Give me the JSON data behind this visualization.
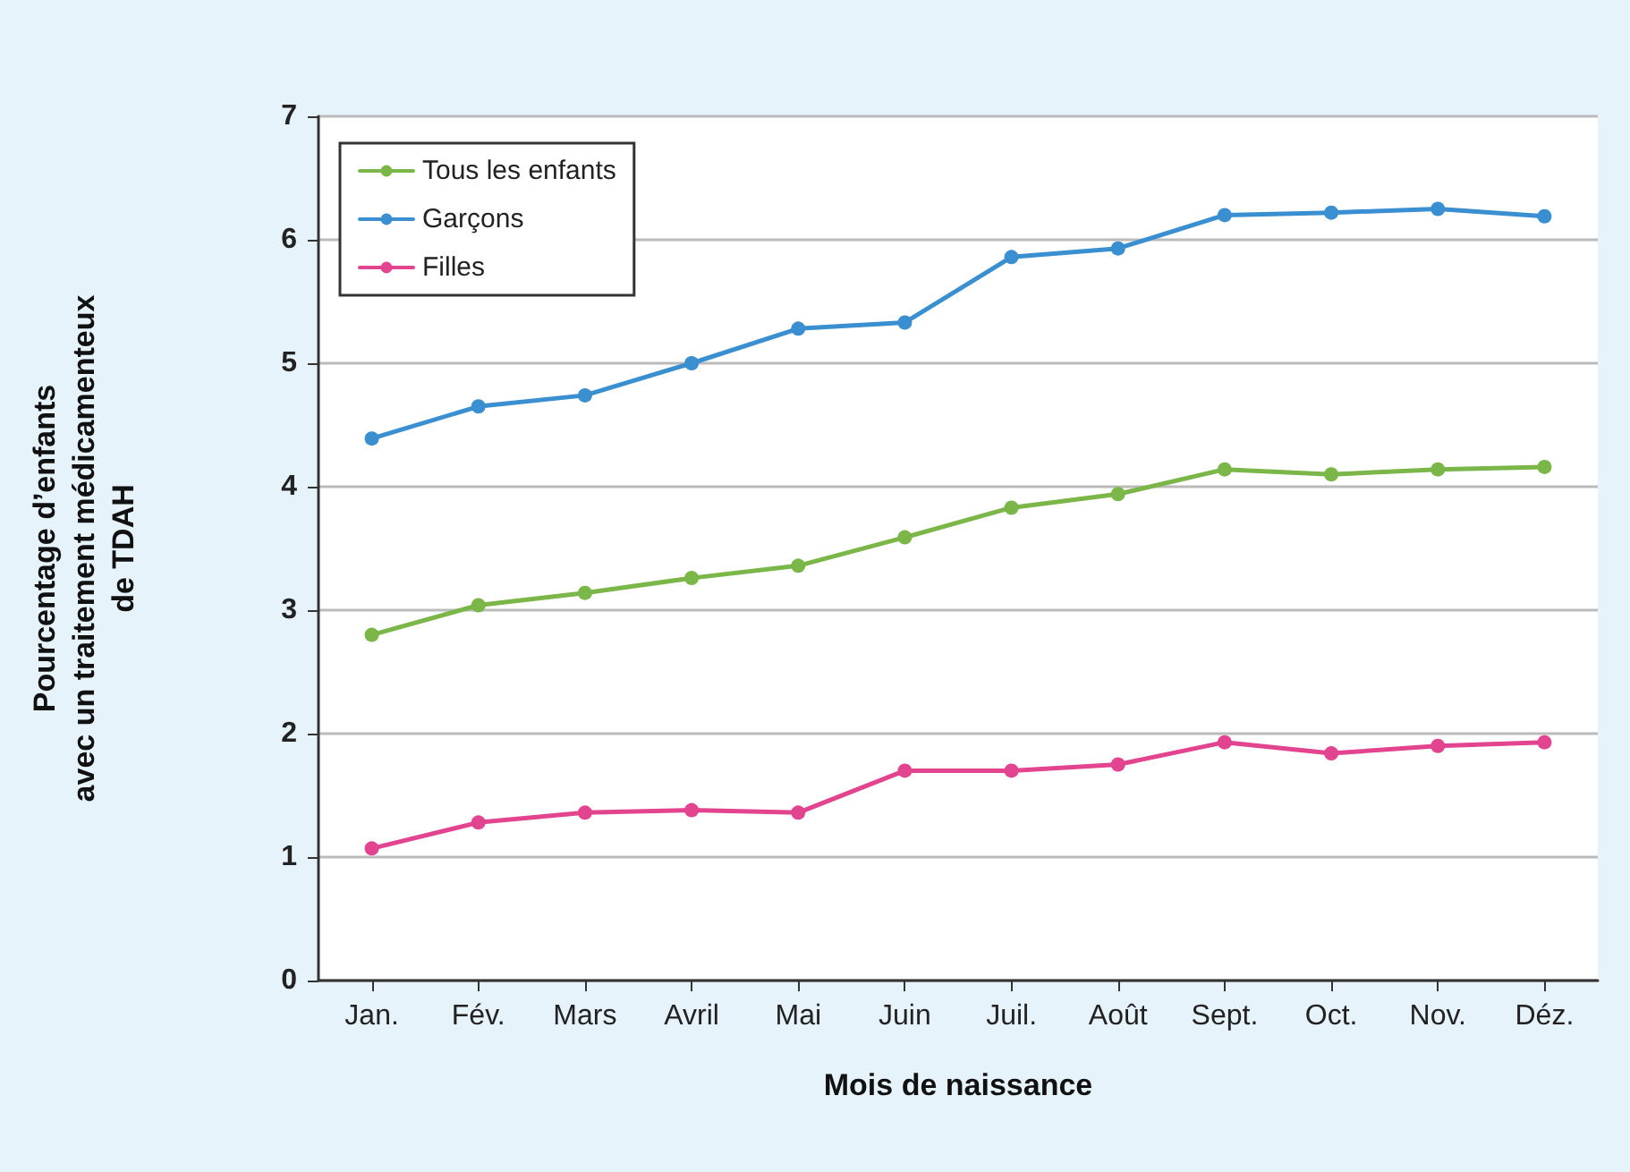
{
  "chart_data": {
    "type": "line",
    "xlabel": "Mois de naissance",
    "ylabel": "Pourcentage d’enfants\navec un traitement médicamenteux\nde TDAH",
    "categories": [
      "Jan.",
      "Fév.",
      "Mars",
      "Avril",
      "Mai",
      "Juin",
      "Juil.",
      "Août",
      "Sept.",
      "Oct.",
      "Nov.",
      "Déz."
    ],
    "series": [
      {
        "name": "Tous les enfants",
        "color": "#7ab648",
        "values": [
          2.8,
          3.04,
          3.14,
          3.26,
          3.36,
          3.59,
          3.83,
          3.94,
          4.14,
          4.1,
          4.14,
          4.16
        ]
      },
      {
        "name": "Garçons",
        "color": "#3a8fd0",
        "values": [
          4.39,
          4.65,
          4.74,
          5.0,
          5.28,
          5.33,
          5.86,
          5.93,
          6.2,
          6.22,
          6.25,
          6.19
        ]
      },
      {
        "name": "Filles",
        "color": "#e2448f",
        "values": [
          1.07,
          1.28,
          1.36,
          1.38,
          1.36,
          1.7,
          1.7,
          1.75,
          1.93,
          1.84,
          1.9,
          1.93
        ]
      }
    ],
    "ylim": [
      0,
      7
    ],
    "yticks": [
      0,
      1,
      2,
      3,
      4,
      5,
      6,
      7
    ],
    "grid": "y",
    "legend": "top left",
    "marker": "circle",
    "line_style": "solid"
  }
}
